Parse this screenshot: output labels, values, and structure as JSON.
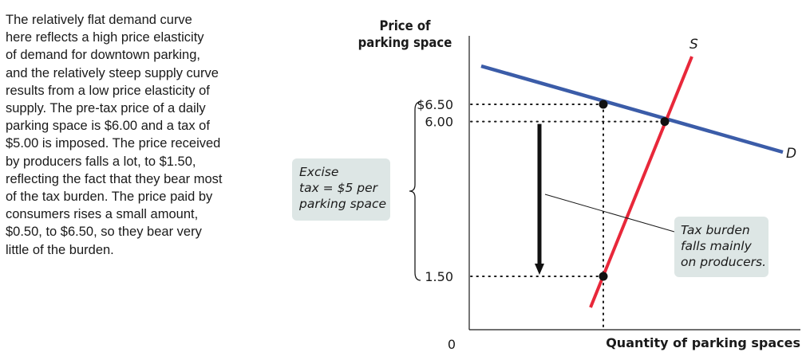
{
  "caption": {
    "lines": [
      "The relatively flat demand curve",
      "here reflects a high price elasticity",
      "of demand for downtown parking,",
      "and the relatively steep supply curve",
      "results from a low price elasticity of",
      "supply. The pre-tax price of a daily",
      "parking space is $6.00 and a tax of",
      "$5.00 is imposed. The price received",
      "by producers falls a lot, to $1.50,",
      "reflecting the fact that they bear most",
      "of the tax burden. The price paid by",
      "consumers rises a small amount,",
      "$0.50, to $6.50, so they bear very",
      "little of the burden."
    ]
  },
  "excise_box": {
    "lines": [
      "Excise",
      "tax = $5 per",
      "parking space"
    ]
  },
  "burden_box": {
    "lines": [
      "Tax burden",
      "falls mainly",
      "on producers."
    ]
  },
  "colors": {
    "demand": "#3b5ca8",
    "supply": "#e8283a",
    "box": "#dde6e5",
    "ink": "#1a1a1a"
  },
  "chart_data": {
    "type": "line",
    "ylabel": [
      "Price of",
      "parking space"
    ],
    "xlabel": "Quantity of parking spaces",
    "y_ticks": [
      {
        "value": 6.5,
        "label": "$6.50"
      },
      {
        "value": 6.0,
        "label": "6.00"
      },
      {
        "value": 1.5,
        "label": "1.50"
      }
    ],
    "origin_label": "0",
    "series": [
      {
        "name": "D",
        "kind": "demand"
      },
      {
        "name": "S",
        "kind": "supply"
      }
    ],
    "points": [
      {
        "label": "consumer price with tax",
        "price": 6.5
      },
      {
        "label": "equilibrium without tax",
        "price": 6.0
      },
      {
        "label": "producer price with tax",
        "price": 1.5
      }
    ],
    "annotations": {
      "tax_arrow": {
        "from": 6.0,
        "to": 1.5
      }
    },
    "grid": false
  }
}
